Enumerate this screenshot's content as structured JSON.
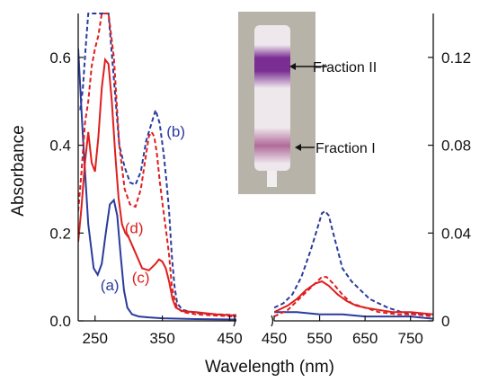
{
  "chart_data": {
    "type": "line",
    "xlabel": "Wavelength (nm)",
    "ylabel": "Absorbance",
    "colors": {
      "a": "#2a3b9c",
      "b": "#2a3b9c",
      "c": "#e01e1e",
      "d": "#e01e1e"
    },
    "panels": [
      {
        "name": "left",
        "xlim": [
          225,
          460
        ],
        "ylim": [
          0,
          0.7
        ],
        "xticks": [
          "250",
          "350",
          "450"
        ],
        "xtick_values": [
          250,
          350,
          450
        ],
        "yticks": [
          "0.0",
          "0.2",
          "0.4",
          "0.6"
        ],
        "ytick_values": [
          0,
          0.2,
          0.4,
          0.6
        ],
        "series": [
          {
            "id": "a",
            "style": "solid",
            "x": [
              225,
              232,
              240,
              248,
              254,
              260,
              266,
              272,
              278,
              283,
              288,
              293,
              298,
              305,
              315,
              330,
              350,
              400,
              460
            ],
            "y": [
              0.62,
              0.42,
              0.22,
              0.12,
              0.105,
              0.13,
              0.2,
              0.265,
              0.275,
              0.24,
              0.15,
              0.07,
              0.03,
              0.015,
              0.01,
              0.008,
              0.006,
              0.004,
              0.003
            ]
          },
          {
            "id": "b",
            "style": "dashed",
            "x": [
              228,
              232,
              236,
              240,
              244,
              248,
              252,
              256,
              262,
              270,
              278,
              286,
              294,
              302,
              310,
              318,
              326,
              334,
              340,
              346,
              352,
              356,
              360,
              364,
              368,
              372,
              380,
              400,
              430,
              460
            ],
            "y": [
              0.48,
              0.53,
              0.62,
              0.7,
              0.7,
              0.7,
              0.7,
              0.7,
              0.7,
              0.7,
              0.55,
              0.4,
              0.35,
              0.315,
              0.31,
              0.34,
              0.41,
              0.45,
              0.48,
              0.45,
              0.38,
              0.32,
              0.25,
              0.15,
              0.08,
              0.04,
              0.025,
              0.018,
              0.015,
              0.013
            ]
          },
          {
            "id": "c",
            "style": "solid",
            "x": [
              225,
              230,
              235,
              240,
              245,
              250,
              255,
              260,
              265,
              270,
              275,
              280,
              285,
              290,
              295,
              300,
              310,
              320,
              330,
              340,
              345,
              350,
              355,
              360,
              365,
              370,
              380,
              400,
              430,
              460
            ],
            "y": [
              0.18,
              0.26,
              0.36,
              0.43,
              0.36,
              0.34,
              0.42,
              0.53,
              0.595,
              0.585,
              0.5,
              0.38,
              0.28,
              0.22,
              0.2,
              0.19,
              0.155,
              0.12,
              0.115,
              0.13,
              0.14,
              0.135,
              0.12,
              0.09,
              0.05,
              0.03,
              0.022,
              0.02,
              0.015,
              0.012
            ]
          },
          {
            "id": "d",
            "style": "dashed",
            "x": [
              225,
              230,
              235,
              240,
              245,
              250,
              255,
              260,
              264,
              270,
              278,
              286,
              294,
              302,
              310,
              318,
              324,
              330,
              334,
              338,
              342,
              346,
              350,
              356,
              360,
              364,
              368,
              372,
              380,
              400,
              430,
              460
            ],
            "y": [
              0.25,
              0.34,
              0.45,
              0.5,
              0.58,
              0.62,
              0.65,
              0.7,
              0.7,
              0.7,
              0.6,
              0.4,
              0.3,
              0.265,
              0.26,
              0.3,
              0.36,
              0.42,
              0.43,
              0.42,
              0.38,
              0.32,
              0.27,
              0.2,
              0.15,
              0.08,
              0.05,
              0.03,
              0.02,
              0.015,
              0.012,
              0.01
            ]
          }
        ]
      },
      {
        "name": "right",
        "xlim": [
          450,
          800
        ],
        "ylim": [
          0,
          0.14
        ],
        "xticks": [
          "450",
          "550",
          "650",
          "750"
        ],
        "xtick_values": [
          450,
          550,
          650,
          750
        ],
        "yticks": [
          "0",
          "0.04",
          "0.08",
          "0.12"
        ],
        "ytick_values": [
          0,
          0.04,
          0.08,
          0.12
        ],
        "series": [
          {
            "id": "b",
            "style": "dashed",
            "x": [
              450,
              470,
              490,
              510,
              530,
              545,
              555,
              562,
              570,
              580,
              590,
              600,
              620,
              640,
              660,
              680,
              700,
              730,
              760,
              800
            ],
            "y": [
              0.006,
              0.008,
              0.012,
              0.02,
              0.032,
              0.042,
              0.049,
              0.05,
              0.048,
              0.04,
              0.032,
              0.024,
              0.018,
              0.014,
              0.01,
              0.008,
              0.006,
              0.004,
              0.003,
              0.003
            ]
          },
          {
            "id": "a",
            "style": "solid",
            "x": [
              450,
              500,
              550,
              600,
              650,
              700,
              750,
              800
            ],
            "y": [
              0.004,
              0.004,
              0.003,
              0.003,
              0.002,
              0.002,
              0.002,
              0.001
            ]
          },
          {
            "id": "c",
            "style": "solid",
            "x": [
              450,
              480,
              500,
              520,
              540,
              555,
              570,
              590,
              610,
              630,
              650,
              680,
              710,
              750,
              800
            ],
            "y": [
              0.004,
              0.007,
              0.01,
              0.014,
              0.017,
              0.018,
              0.016,
              0.012,
              0.009,
              0.007,
              0.006,
              0.005,
              0.004,
              0.004,
              0.003
            ]
          },
          {
            "id": "d",
            "style": "dashed",
            "x": [
              450,
              480,
              500,
              520,
              540,
              555,
              565,
              580,
              600,
              620,
              650,
              680,
              720,
              760,
              800
            ],
            "y": [
              0.002,
              0.005,
              0.009,
              0.013,
              0.017,
              0.02,
              0.02,
              0.017,
              0.012,
              0.008,
              0.006,
              0.004,
              0.003,
              0.003,
              0.002
            ]
          }
        ]
      }
    ],
    "curve_labels": [
      {
        "id": "a",
        "text": "(a)",
        "x": 272,
        "y": 0.07
      },
      {
        "id": "b",
        "text": "(b)",
        "x": 370,
        "y": 0.42
      },
      {
        "id": "c",
        "text": "(c)",
        "x": 318,
        "y": 0.087
      },
      {
        "id": "d",
        "text": "(d)",
        "x": 308,
        "y": 0.2
      }
    ],
    "inset": {
      "labels": [
        "Fraction II",
        "Fraction I"
      ],
      "colors": {
        "background": "#b8b3a8",
        "column": "#eee7ec",
        "band_II": "#7a2d93",
        "band_I": "#b06a9a",
        "tip": "#f0eef0"
      }
    }
  }
}
